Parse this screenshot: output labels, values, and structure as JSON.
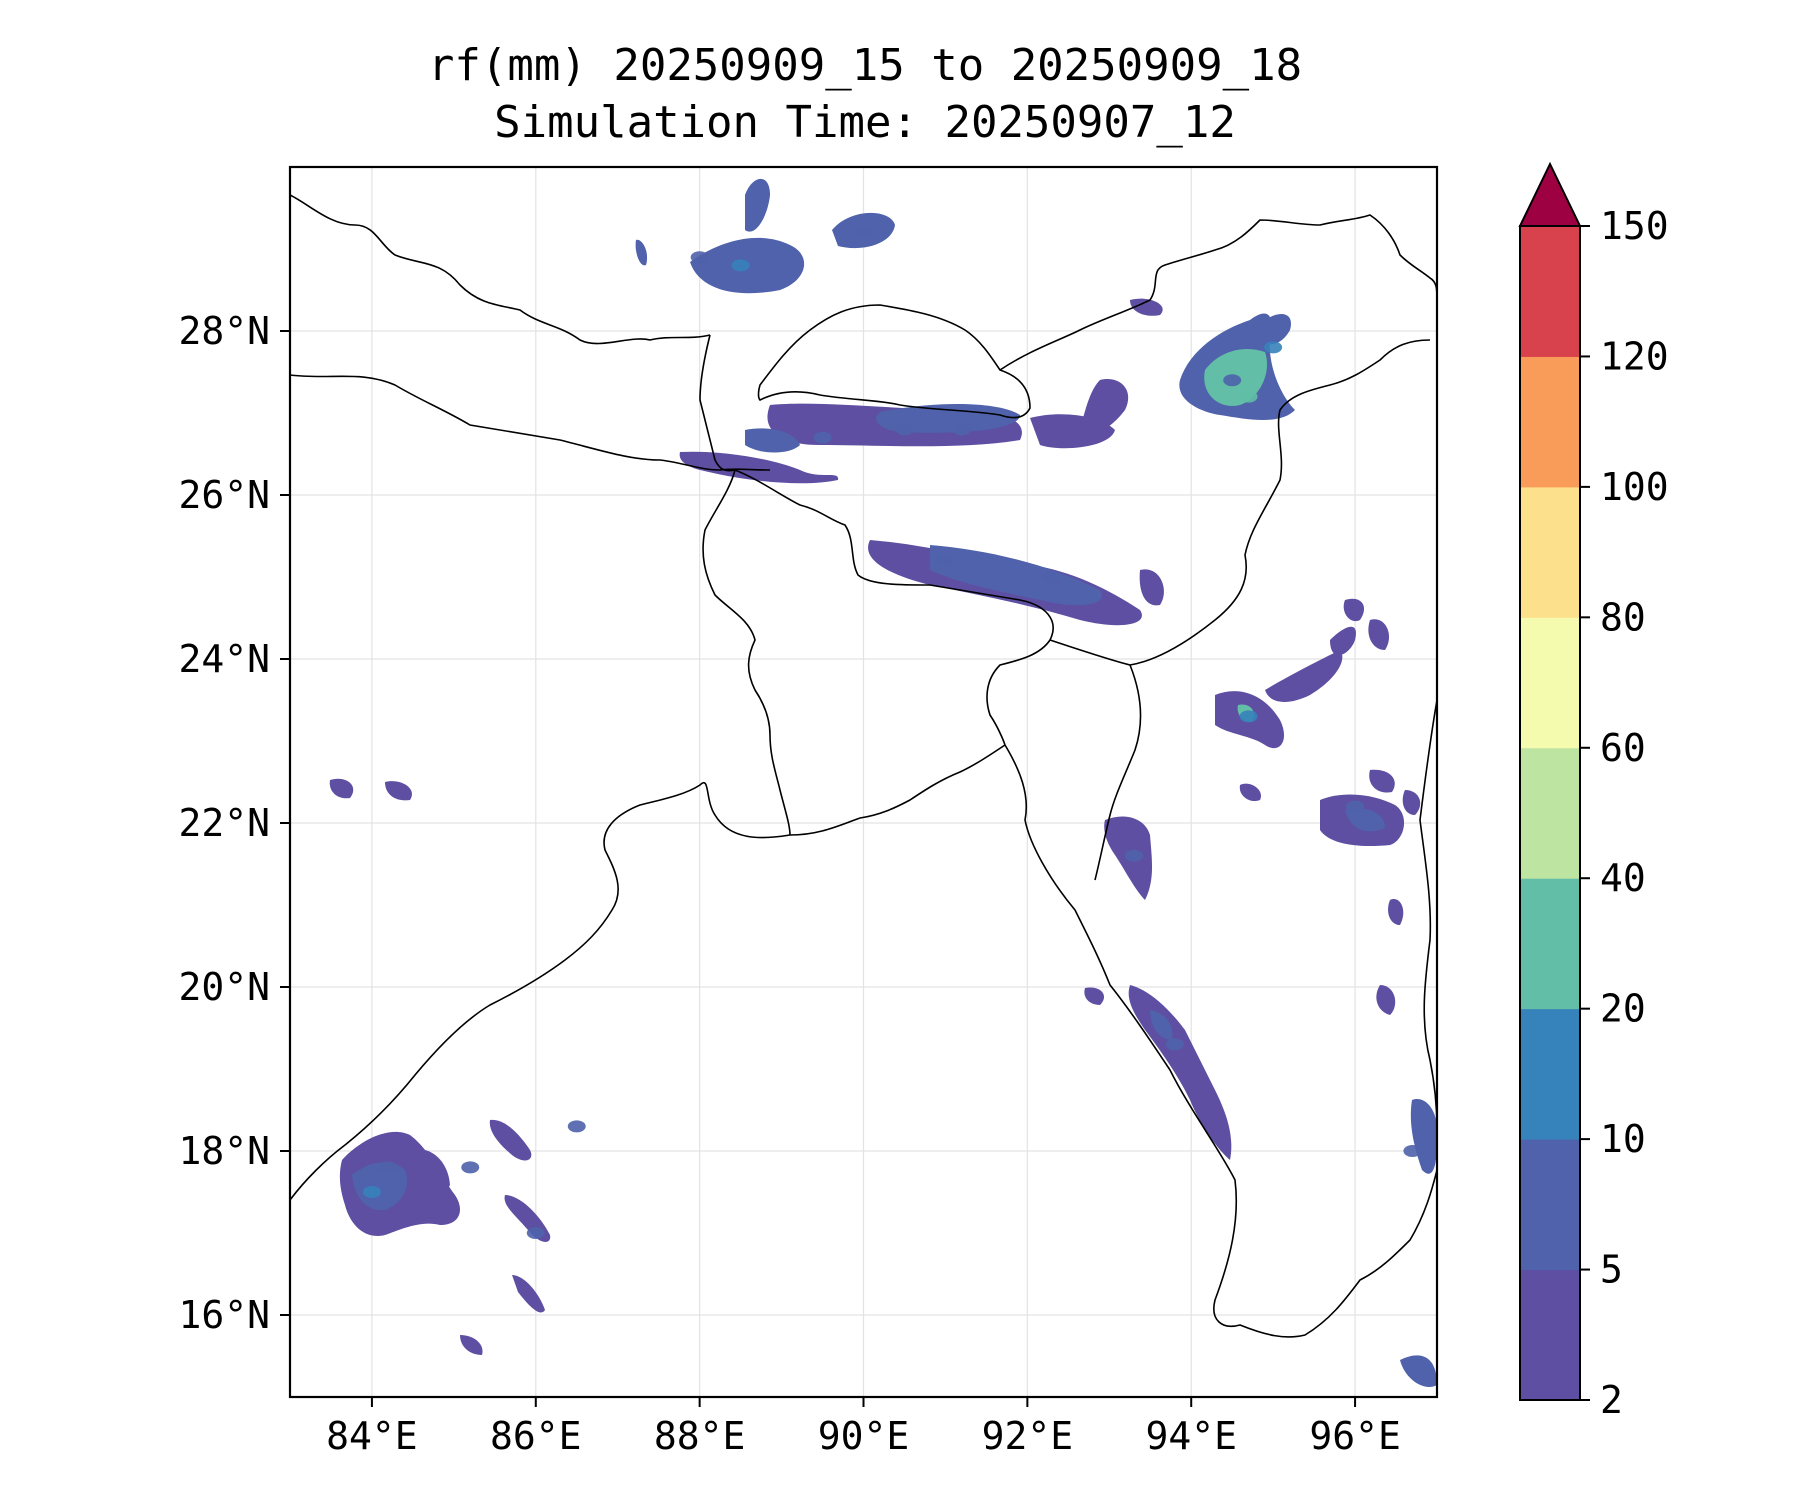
{
  "title": {
    "line1": "rf(mm) 20250909_15 to 20250909_18",
    "line2": "Simulation Time: 20250907_12"
  },
  "map": {
    "lon_range": [
      83,
      97
    ],
    "lat_range": [
      15,
      30
    ],
    "lon_ticks": [
      84,
      86,
      88,
      90,
      92,
      94,
      96
    ],
    "lon_tick_labels": [
      "84°E",
      "86°E",
      "88°E",
      "90°E",
      "92°E",
      "94°E",
      "96°E"
    ],
    "lat_ticks": [
      16,
      18,
      20,
      22,
      24,
      26,
      28
    ],
    "lat_tick_labels": [
      "16°N",
      "18°N",
      "20°N",
      "22°N",
      "24°N",
      "26°N",
      "28°N"
    ],
    "gridlines": true
  },
  "colorbar": {
    "levels": [
      "2",
      "5",
      "10",
      "20",
      "40",
      "60",
      "80",
      "100",
      "120",
      "150"
    ],
    "colors": [
      "#5e4fa2",
      "#4f62ab",
      "#3682ba",
      "#62bea6",
      "#bde4a0",
      "#f5fbae",
      "#fde08b",
      "#f99b59",
      "#d8424c",
      "#9e0142"
    ],
    "extend": "max"
  },
  "rain_cells": [
    {
      "lon": 84.2,
      "lat": 17.8,
      "level": 1
    },
    {
      "lon": 84.0,
      "lat": 17.5,
      "level": 2
    },
    {
      "lon": 85.2,
      "lat": 17.8,
      "level": 1
    },
    {
      "lon": 86.0,
      "lat": 17.0,
      "level": 1
    },
    {
      "lon": 86.5,
      "lat": 18.3,
      "level": 1
    },
    {
      "lon": 88.0,
      "lat": 28.9,
      "level": 1
    },
    {
      "lon": 88.5,
      "lat": 28.8,
      "level": 2
    },
    {
      "lon": 90.0,
      "lat": 29.2,
      "level": 1
    },
    {
      "lon": 89.5,
      "lat": 26.7,
      "level": 1
    },
    {
      "lon": 90.5,
      "lat": 26.8,
      "level": 1
    },
    {
      "lon": 91.2,
      "lat": 26.8,
      "level": 1
    },
    {
      "lon": 92.3,
      "lat": 25.0,
      "level": 1
    },
    {
      "lon": 91.0,
      "lat": 25.2,
      "level": 1
    },
    {
      "lon": 94.5,
      "lat": 27.4,
      "level": 1
    },
    {
      "lon": 94.7,
      "lat": 27.2,
      "level": 3
    },
    {
      "lon": 95.0,
      "lat": 27.8,
      "level": 2
    },
    {
      "lon": 94.7,
      "lat": 23.3,
      "level": 2
    },
    {
      "lon": 96.0,
      "lat": 22.2,
      "level": 1
    },
    {
      "lon": 93.3,
      "lat": 21.6,
      "level": 1
    },
    {
      "lon": 93.8,
      "lat": 19.3,
      "level": 1
    },
    {
      "lon": 96.7,
      "lat": 18.0,
      "level": 1
    }
  ]
}
